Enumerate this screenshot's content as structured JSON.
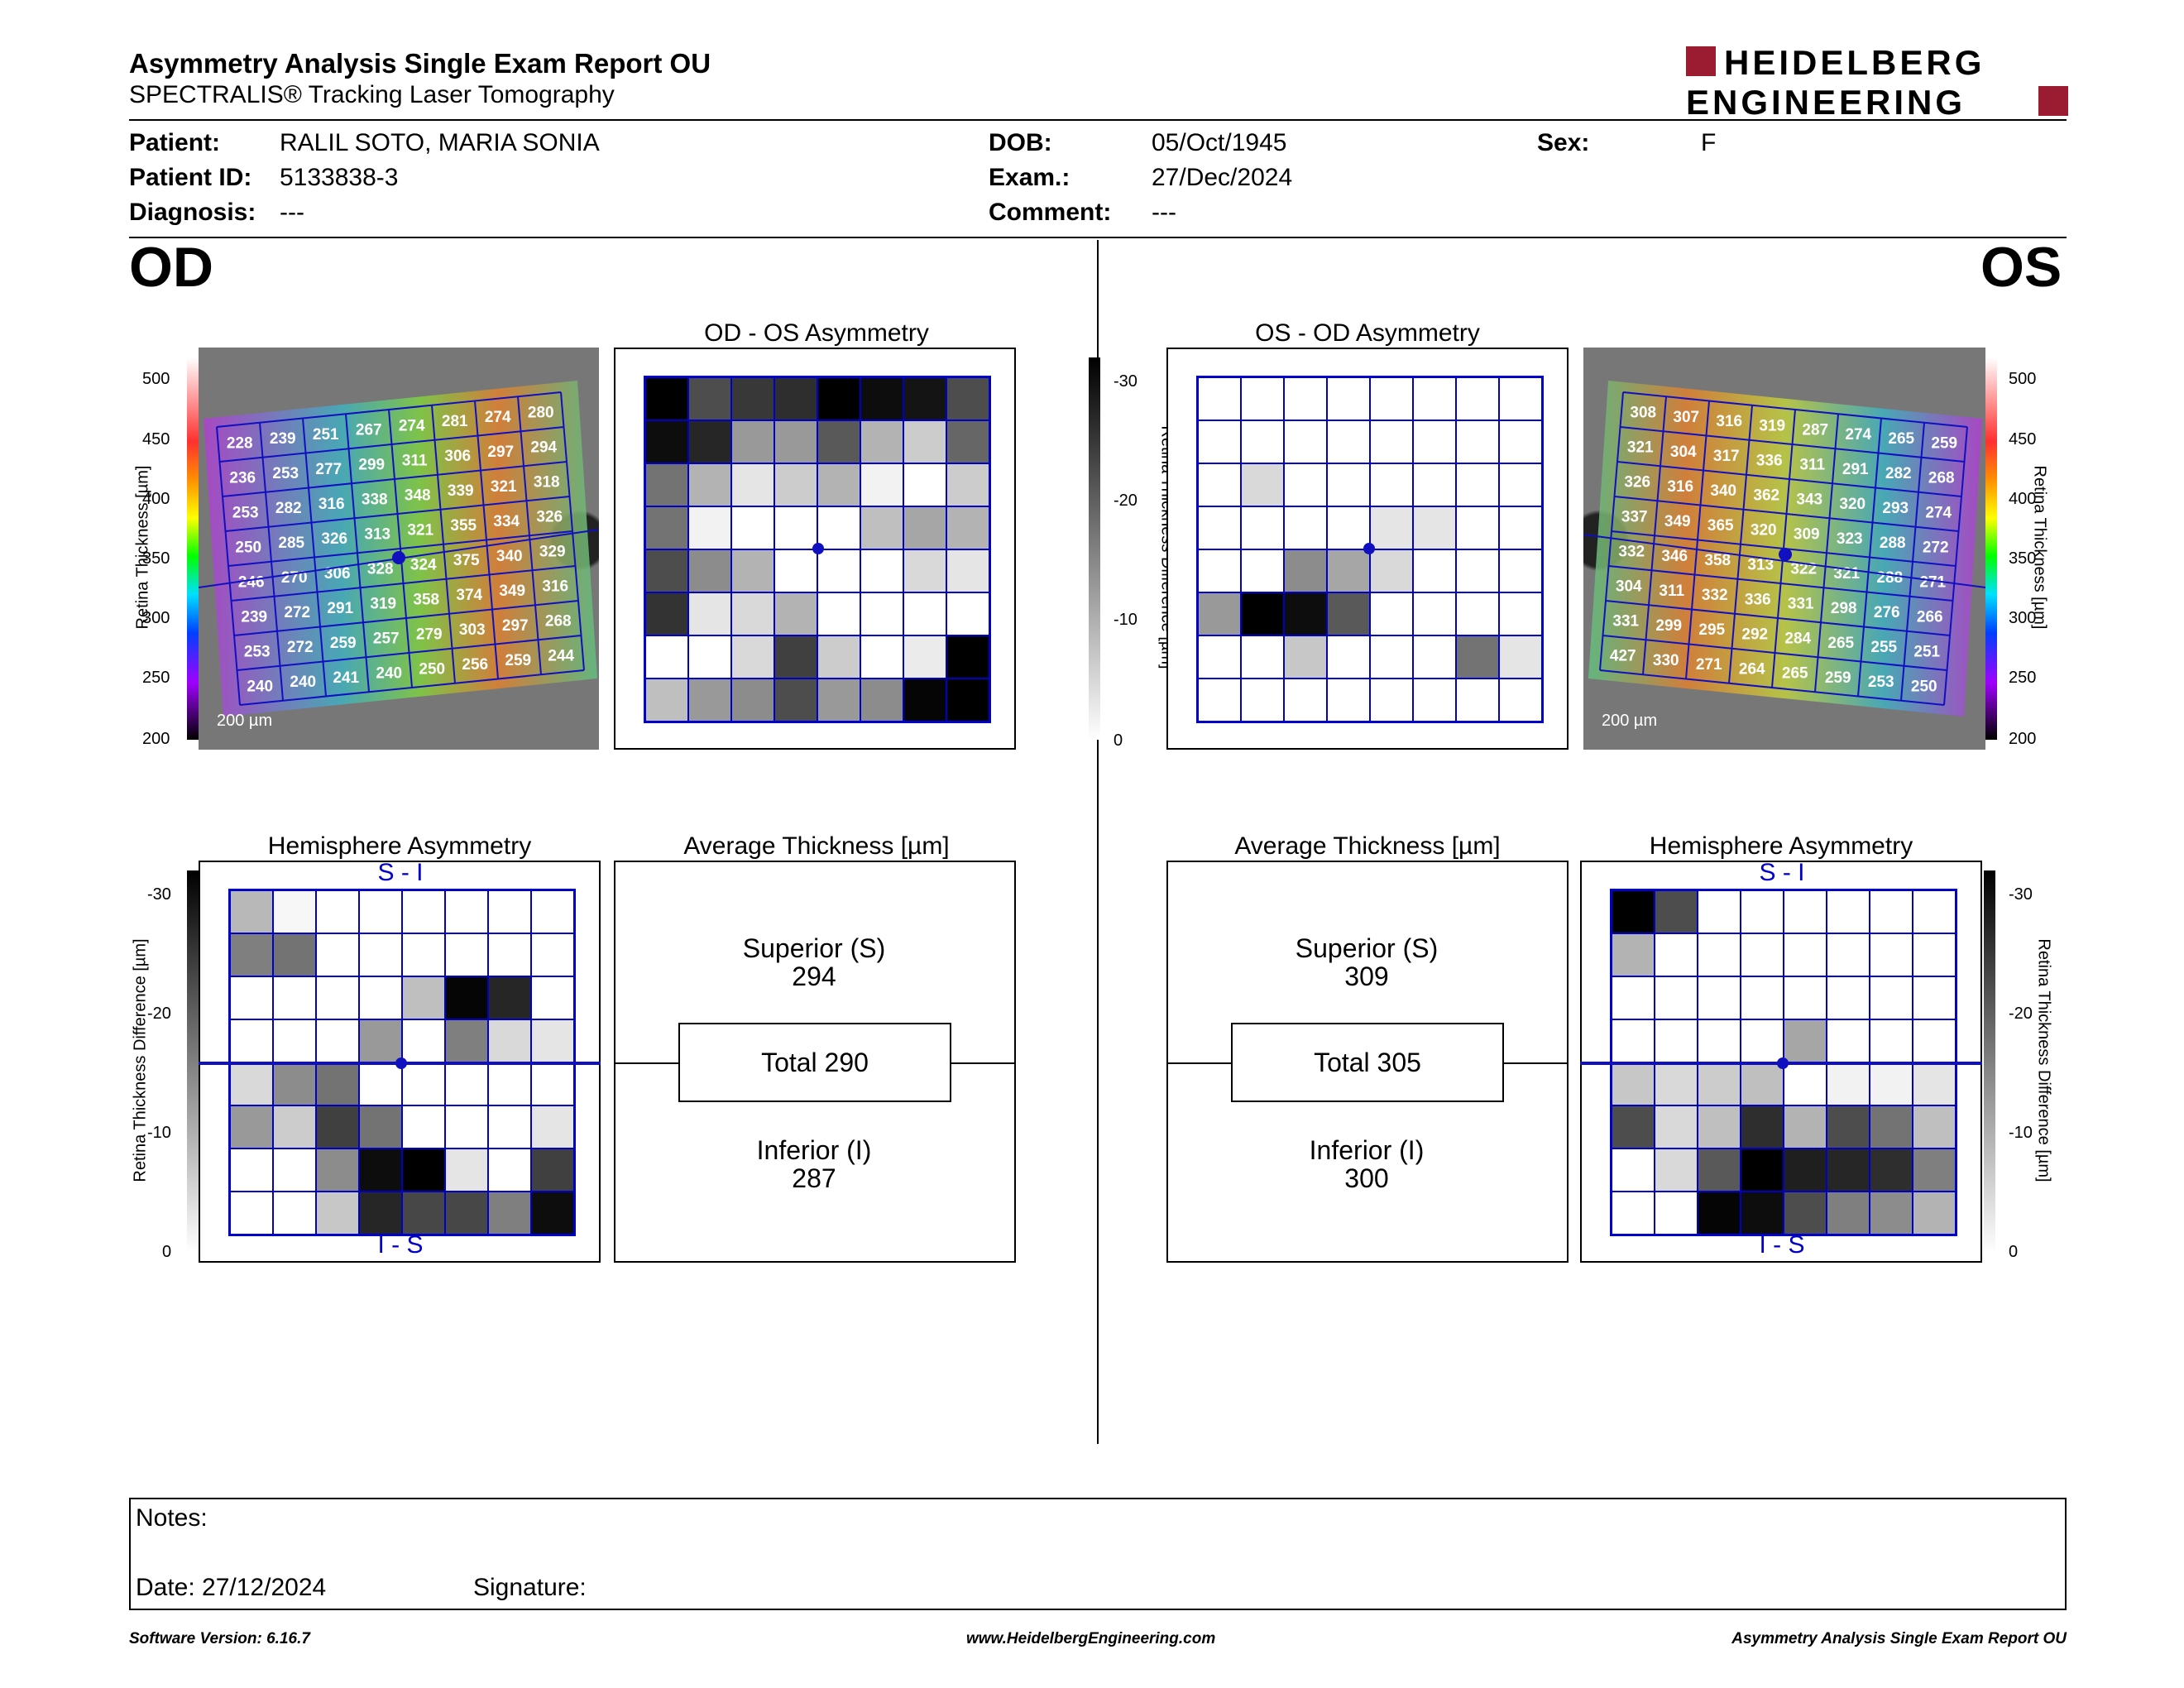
{
  "header": {
    "title": "Asymmetry Analysis Single Exam Report OU",
    "subtitle": "SPECTRALIS® Tracking Laser Tomography",
    "logo_line1": "HEIDELBERG",
    "logo_line2": "ENGINEERING",
    "logo_color": "#9b1b30"
  },
  "patient": {
    "patient_label": "Patient:",
    "patient_value": "RALIL SOTO, MARIA SONIA",
    "id_label": "Patient ID:",
    "id_value": "5133838-3",
    "diagnosis_label": "Diagnosis:",
    "diagnosis_value": "---",
    "dob_label": "DOB:",
    "dob_value": "05/Oct/1945",
    "exam_label": "Exam.:",
    "exam_value": "27/Dec/2024",
    "comment_label": "Comment:",
    "comment_value": "---",
    "sex_label": "Sex:",
    "sex_value": "F"
  },
  "eyes": {
    "od": "OD",
    "os": "OS"
  },
  "thickness_scale": {
    "label": "Retina  Thickness [µm]",
    "ticks": [
      "500",
      "450",
      "400",
      "350",
      "300",
      "250",
      "200"
    ],
    "scalebar": "200 µm"
  },
  "diff_scale": {
    "label": "Retina Thickness Difference [µm]",
    "ticks": [
      "-30",
      "-20",
      "-10",
      "0"
    ]
  },
  "od": {
    "asym_title": "OD - OS Asymmetry",
    "hemi_title": "Hemisphere Asymmetry",
    "avg_title": "Average Thickness [µm]",
    "hemi_top": "S - I",
    "hemi_bottom": "I - S",
    "superior_label": "Superior (S)",
    "superior_value": "294",
    "total_label": "Total 290",
    "inferior_label": "Inferior (I)",
    "inferior_value": "287",
    "thickness_grid": [
      [
        "228",
        "239",
        "251",
        "267",
        "274",
        "281",
        "274",
        "280"
      ],
      [
        "236",
        "253",
        "277",
        "299",
        "311",
        "306",
        "297",
        "294"
      ],
      [
        "253",
        "282",
        "316",
        "338",
        "348",
        "339",
        "321",
        "318"
      ],
      [
        "250",
        "285",
        "326",
        "313",
        "321",
        "355",
        "334",
        "326"
      ],
      [
        "246",
        "270",
        "306",
        "328",
        "324",
        "375",
        "340",
        "329"
      ],
      [
        "239",
        "272",
        "291",
        "319",
        "358",
        "374",
        "349",
        "316"
      ],
      [
        "253",
        "272",
        "259",
        "257",
        "279",
        "303",
        "297",
        "268"
      ],
      [
        "240",
        "240",
        "241",
        "240",
        "250",
        "256",
        "259",
        "244"
      ]
    ],
    "asym_grid": [
      [
        0,
        30,
        22,
        18,
        0,
        5,
        8,
        30
      ],
      [
        5,
        15,
        60,
        60,
        35,
        70,
        80,
        40
      ],
      [
        45,
        70,
        90,
        80,
        70,
        95,
        100,
        80
      ],
      [
        45,
        95,
        100,
        100,
        100,
        75,
        65,
        70
      ],
      [
        30,
        55,
        70,
        100,
        100,
        100,
        85,
        90
      ],
      [
        20,
        90,
        85,
        70,
        100,
        100,
        100,
        100
      ],
      [
        100,
        100,
        85,
        25,
        80,
        100,
        92,
        0
      ],
      [
        75,
        60,
        55,
        30,
        60,
        55,
        2,
        0
      ]
    ],
    "hemi_grid": [
      [
        72,
        97,
        100,
        100,
        100,
        100,
        100,
        100
      ],
      [
        50,
        45,
        100,
        100,
        100,
        100,
        100,
        100
      ],
      [
        100,
        100,
        100,
        100,
        75,
        2,
        15,
        100
      ],
      [
        100,
        100,
        100,
        60,
        100,
        50,
        85,
        90
      ],
      [
        85,
        55,
        45,
        100,
        100,
        100,
        100,
        100
      ],
      [
        60,
        80,
        25,
        45,
        100,
        100,
        100,
        90
      ],
      [
        100,
        100,
        55,
        5,
        0,
        90,
        100,
        25
      ],
      [
        100,
        100,
        78,
        15,
        28,
        28,
        50,
        5
      ]
    ]
  },
  "os": {
    "asym_title": "OS - OD Asymmetry",
    "hemi_title": "Hemisphere Asymmetry",
    "avg_title": "Average Thickness [µm]",
    "hemi_top": "S - I",
    "hemi_bottom": "I - S",
    "superior_label": "Superior (S)",
    "superior_value": "309",
    "total_label": "Total 305",
    "inferior_label": "Inferior (I)",
    "inferior_value": "300",
    "thickness_grid": [
      [
        "308",
        "307",
        "316",
        "319",
        "287",
        "274",
        "265",
        "259"
      ],
      [
        "321",
        "304",
        "317",
        "336",
        "311",
        "291",
        "282",
        "268"
      ],
      [
        "326",
        "316",
        "340",
        "362",
        "343",
        "320",
        "293",
        "274"
      ],
      [
        "337",
        "349",
        "365",
        "320",
        "309",
        "323",
        "288",
        "272"
      ],
      [
        "332",
        "346",
        "358",
        "313",
        "322",
        "321",
        "288",
        "271"
      ],
      [
        "304",
        "311",
        "332",
        "336",
        "331",
        "298",
        "276",
        "266"
      ],
      [
        "331",
        "299",
        "295",
        "292",
        "284",
        "265",
        "255",
        "251"
      ],
      [
        "427",
        "330",
        "271",
        "264",
        "265",
        "259",
        "253",
        "250"
      ]
    ],
    "asym_grid": [
      [
        100,
        100,
        100,
        100,
        100,
        100,
        100,
        100
      ],
      [
        100,
        100,
        100,
        100,
        100,
        100,
        100,
        100
      ],
      [
        100,
        85,
        100,
        100,
        100,
        100,
        100,
        100
      ],
      [
        100,
        100,
        100,
        100,
        90,
        90,
        100,
        100
      ],
      [
        100,
        100,
        55,
        65,
        85,
        100,
        100,
        100
      ],
      [
        60,
        0,
        5,
        35,
        100,
        100,
        100,
        100
      ],
      [
        100,
        100,
        78,
        100,
        100,
        100,
        45,
        90
      ],
      [
        100,
        100,
        100,
        100,
        100,
        100,
        100,
        100
      ]
    ],
    "hemi_grid": [
      [
        0,
        30,
        100,
        100,
        100,
        100,
        100,
        100
      ],
      [
        70,
        100,
        100,
        100,
        100,
        100,
        100,
        100
      ],
      [
        100,
        100,
        100,
        100,
        100,
        100,
        100,
        100
      ],
      [
        100,
        100,
        100,
        100,
        65,
        100,
        100,
        100
      ],
      [
        78,
        85,
        80,
        75,
        100,
        95,
        95,
        90
      ],
      [
        30,
        85,
        75,
        18,
        70,
        30,
        45,
        75
      ],
      [
        100,
        85,
        35,
        0,
        12,
        15,
        18,
        50
      ],
      [
        100,
        100,
        2,
        5,
        30,
        50,
        55,
        70
      ]
    ]
  },
  "notes": {
    "notes_label": "Notes:",
    "date_label": "Date: 27/12/2024",
    "signature_label": "Signature:"
  },
  "footer": {
    "version": "Software Version: 6.16.7",
    "website": "www.HeidelbergEngineering.com",
    "report": "Asymmetry Analysis Single Exam Report OU"
  }
}
